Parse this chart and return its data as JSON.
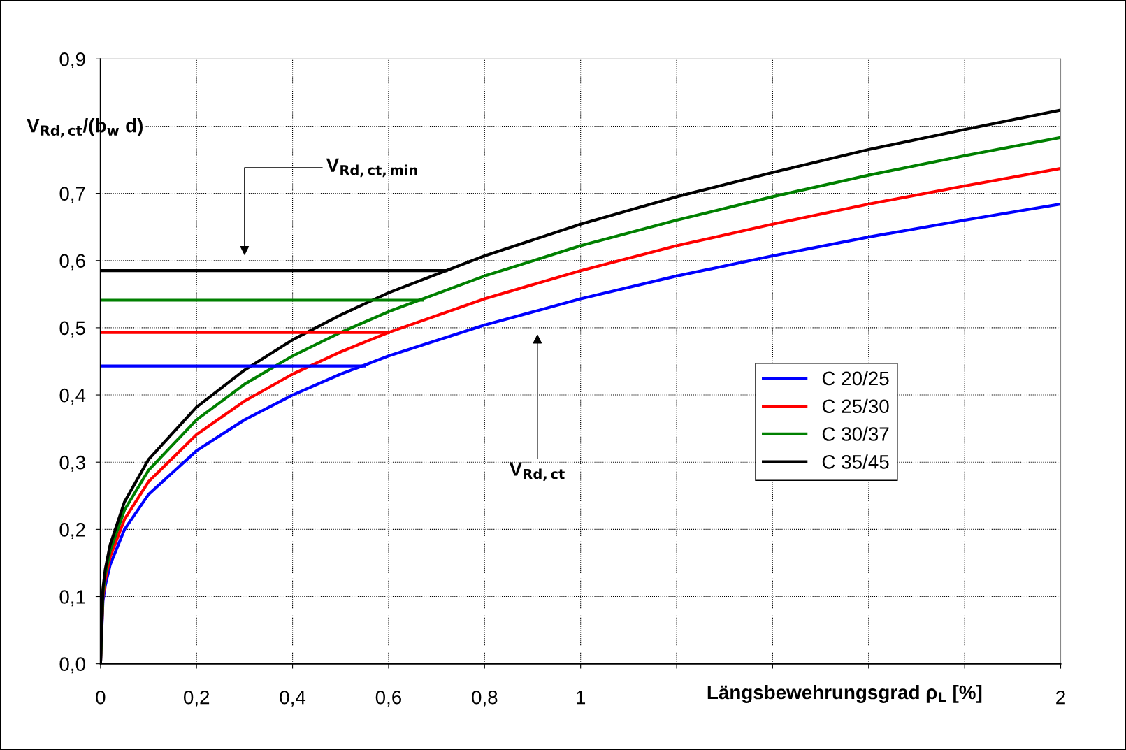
{
  "chart_data": {
    "type": "line",
    "xlabel": "Längsbewehrungsgrad ρ$_{L}$ [%]",
    "ylabel": "V$_{Rd,ct}$/(b$_{w}$ d)",
    "x": [
      0,
      0.005,
      0.01,
      0.02,
      0.05,
      0.1,
      0.2,
      0.3,
      0.4,
      0.5,
      0.6,
      0.8,
      1,
      1.2,
      1.4,
      1.6,
      1.8,
      2
    ],
    "series": [
      {
        "name": "C 20/25",
        "color": "#0000ff",
        "values": [
          0,
          0.093,
          0.117,
          0.147,
          0.2,
          0.252,
          0.317,
          0.363,
          0.4,
          0.431,
          0.458,
          0.504,
          0.543,
          0.577,
          0.607,
          0.635,
          0.66,
          0.684
        ]
      },
      {
        "name": "C 25/30",
        "color": "#ff0000",
        "values": [
          0,
          0.1,
          0.126,
          0.159,
          0.215,
          0.271,
          0.341,
          0.391,
          0.431,
          0.464,
          0.493,
          0.543,
          0.585,
          0.622,
          0.654,
          0.684,
          0.711,
          0.737
        ]
      },
      {
        "name": "C 30/37",
        "color": "#008000",
        "values": [
          0,
          0.106,
          0.134,
          0.168,
          0.229,
          0.288,
          0.363,
          0.416,
          0.458,
          0.493,
          0.524,
          0.577,
          0.622,
          0.66,
          0.695,
          0.727,
          0.756,
          0.783
        ]
      },
      {
        "name": "C 35/45",
        "color": "#000000",
        "values": [
          0,
          0.112,
          0.141,
          0.177,
          0.241,
          0.304,
          0.382,
          0.437,
          0.482,
          0.519,
          0.552,
          0.607,
          0.654,
          0.695,
          0.731,
          0.765,
          0.795,
          0.824
        ]
      },
      {
        "color": "#0000ff",
        "x": [
          0,
          0.55
        ],
        "values": [
          0.443,
          0.443
        ]
      },
      {
        "color": "#ff0000",
        "x": [
          0,
          0.6
        ],
        "values": [
          0.493,
          0.493
        ]
      },
      {
        "color": "#008000",
        "x": [
          0,
          0.67
        ],
        "values": [
          0.541,
          0.541
        ]
      },
      {
        "color": "#000000",
        "x": [
          0,
          0.72
        ],
        "values": [
          0.585,
          0.585
        ]
      }
    ],
    "annotations": [
      "V$_{Rd,ct,min}$",
      "V$_{Rd,ct}$"
    ],
    "xlim": [
      0,
      2
    ],
    "ylim": [
      0,
      0.9
    ],
    "xticks": [
      0,
      {
        "value": 0.2,
        "label": "0,2"
      },
      {
        "value": 0.4,
        "label": "0,4"
      },
      {
        "value": 0.6,
        "label": "0,6"
      },
      {
        "value": 0.8,
        "label": "0,8"
      },
      1,
      {
        "value": 1.2,
        "label": null
      },
      {
        "value": 1.4,
        "label": null
      },
      {
        "value": 1.6,
        "label": null
      },
      {
        "value": 1.8,
        "label": null
      },
      2
    ],
    "yticks": [
      {
        "value": 0,
        "label": "0,0"
      },
      {
        "value": 0.1,
        "label": "0,1"
      },
      {
        "value": 0.2,
        "label": "0,2"
      },
      {
        "value": 0.3,
        "label": "0,3"
      },
      {
        "value": 0.4,
        "label": "0,4"
      },
      {
        "value": 0.5,
        "label": "0,5"
      },
      {
        "value": 0.6,
        "label": "0,6"
      },
      {
        "value": 0.7,
        "label": "0,7"
      },
      {
        "value": 0.8,
        "label": null
      },
      {
        "value": 0.9,
        "label": "0,9"
      }
    ],
    "grid": true,
    "legend": "right",
    "marker": "none",
    "line_style": "solid"
  }
}
